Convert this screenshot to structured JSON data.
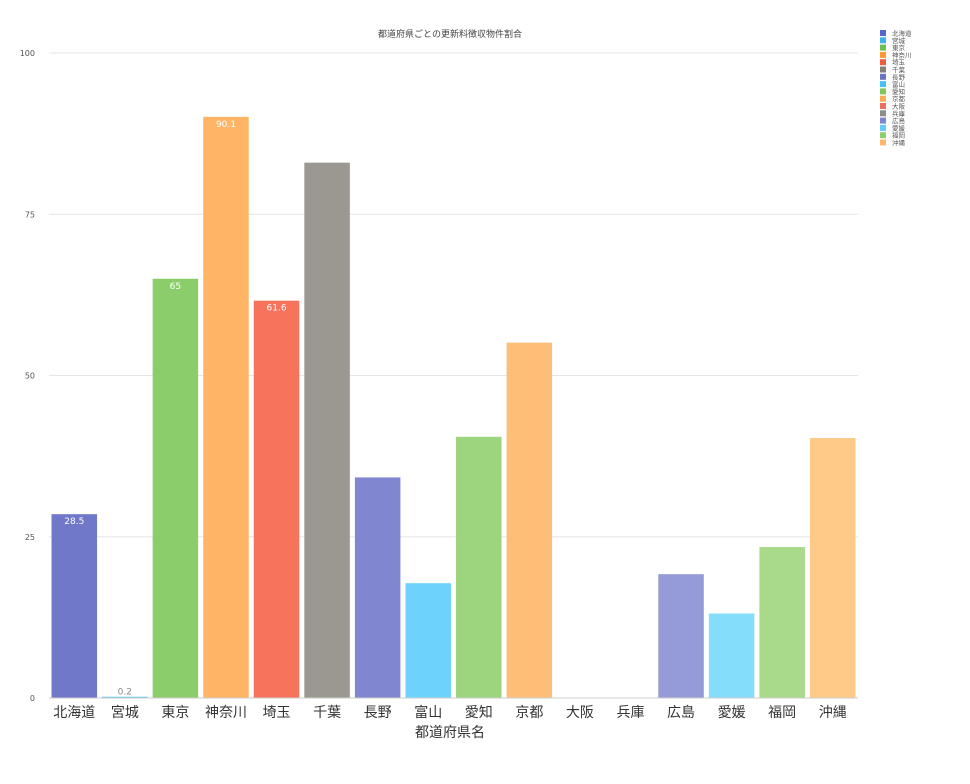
{
  "chart_data": {
    "type": "bar",
    "title": "都道府県ごとの更新料徴収物件割合",
    "xlabel": "都道府県名",
    "ylabel": "",
    "ylim": [
      0,
      100
    ],
    "yticks": [
      0,
      25,
      50,
      75,
      100
    ],
    "grid": true,
    "legend_position": "top-right",
    "categories": [
      "北海道",
      "宮城",
      "東京",
      "神奈川",
      "埼玉",
      "千葉",
      "長野",
      "富山",
      "愛知",
      "京都",
      "大阪",
      "兵庫",
      "広島",
      "愛媛",
      "福岡",
      "沖縄"
    ],
    "values": [
      28.5,
      0.2,
      65,
      90.1,
      61.6,
      83,
      34.2,
      17.8,
      40.5,
      55.1,
      0,
      0,
      19.2,
      13.1,
      23.4,
      40.3
    ],
    "data_labels": [
      "28.5",
      "0.2",
      "65",
      "90.1",
      "61.6",
      "",
      "",
      "",
      "",
      "",
      "",
      "",
      "",
      "",
      "",
      ""
    ],
    "colors": [
      "#7078c9",
      "#5bc8ef",
      "#8ccd6b",
      "#ffb466",
      "#f7735c",
      "#9b9791",
      "#8087d0",
      "#6dd3fc",
      "#9dd47e",
      "#ffbe78",
      "#c6c6ea",
      "#aaaaaa",
      "#949bd6",
      "#85ddfc",
      "#a8da89",
      "#ffc987"
    ],
    "legend_colors": [
      "#5566cc",
      "#3cb4e7",
      "#6cbf50",
      "#ff9933",
      "#f25a40",
      "#858177",
      "#6a73c4",
      "#48c2f5",
      "#80c760",
      "#ffab55",
      "#ee6f5c",
      "#8c8c8c",
      "#7c85d0",
      "#62cbf5",
      "#8ecf72",
      "#ffb86b"
    ]
  }
}
